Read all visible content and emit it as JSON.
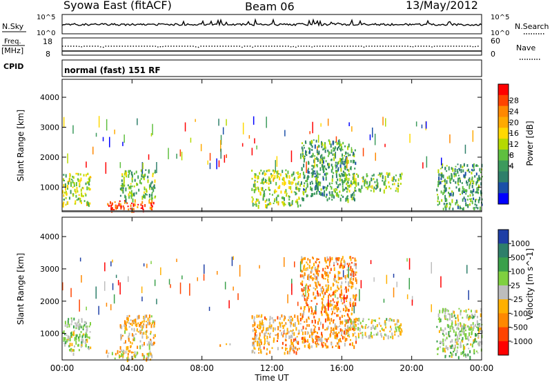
{
  "header": {
    "station": "Syowa East (fitACF)",
    "beam": "Beam 06",
    "date": "13/May/2012"
  },
  "noise_panel": {
    "left_label": "N.Sky",
    "right_label": "N.Search",
    "left_ticks": [
      "10^5",
      "10^0"
    ],
    "right_ticks": [
      "10^5",
      "10^0"
    ]
  },
  "freq_panel": {
    "left_label": "Freq.",
    "left_unit": "[MHz]",
    "right_label": "Nave",
    "left_ticks": [
      "18",
      "8"
    ],
    "right_ticks": [
      "60",
      "0"
    ]
  },
  "cpid_panel": {
    "label": "CPID",
    "mode": "normal (fast) 151 RF"
  },
  "axes": {
    "xlabel": "Time UT",
    "ylabel": "Slant Range [km]",
    "x_ticks": [
      "00:00",
      "04:00",
      "08:00",
      "12:00",
      "16:00",
      "20:00",
      "00:00"
    ],
    "y_ticks": [
      "1000",
      "2000",
      "3000",
      "4000"
    ]
  },
  "power_colorbar": {
    "label": "Power [dB]",
    "ticks": [
      "28",
      "24",
      "20",
      "16",
      "12",
      "8",
      "4"
    ],
    "colors": [
      "#ff0000",
      "#ff4400",
      "#ff8800",
      "#ffaa00",
      "#ffd800",
      "#b5d900",
      "#5fbf3f",
      "#3c9a5c",
      "#2e7f6a",
      "#1a4fa8",
      "#0000ff"
    ]
  },
  "velocity_colorbar": {
    "label": "Velocity [m s^-1]",
    "ticks": [
      "1000",
      "500",
      "100",
      "25",
      "-25",
      "-100",
      "-500",
      "-1000"
    ],
    "colors": [
      "#1f3fa6",
      "#2e7f6a",
      "#3aa04a",
      "#7fd040",
      "#bdbdbd",
      "#ffb000",
      "#ff8800",
      "#ff4400",
      "#ff0000"
    ]
  },
  "chart_data": {
    "type": "heatmap",
    "title": "Syowa East (fitACF) Beam 06 13/May/2012",
    "xlabel": "Time UT",
    "ylabel": "Slant Range [km]",
    "xlim_hours": [
      0,
      24
    ],
    "ylim_km": [
      180,
      4600
    ],
    "panels": [
      {
        "name": "Power",
        "unit": "dB",
        "range": [
          0,
          30
        ],
        "regions": [
          {
            "t": [
              0.0,
              1.6
            ],
            "r": [
              400,
              1500
            ],
            "level": 14
          },
          {
            "t": [
              2.5,
              5.2
            ],
            "r": [
              250,
              600
            ],
            "level": 26
          },
          {
            "t": [
              3.3,
              5.3
            ],
            "r": [
              600,
              1600
            ],
            "level": 12
          },
          {
            "t": [
              10.8,
              13.6
            ],
            "r": [
              400,
              1600
            ],
            "level": 14
          },
          {
            "t": [
              13.6,
              16.8
            ],
            "r": [
              600,
              2600
            ],
            "level": 10
          },
          {
            "t": [
              16.2,
              19.4
            ],
            "r": [
              900,
              1500
            ],
            "level": 12
          },
          {
            "t": [
              21.4,
              24.0
            ],
            "r": [
              300,
              1800
            ],
            "level": 10
          }
        ]
      },
      {
        "name": "Velocity",
        "unit": "m s^-1",
        "range": [
          -1000,
          1000
        ],
        "regions": [
          {
            "t": [
              0.0,
              1.6
            ],
            "r": [
              400,
              1500
            ],
            "level": 150
          },
          {
            "t": [
              2.5,
              5.2
            ],
            "r": [
              200,
              500
            ],
            "level": -150
          },
          {
            "t": [
              3.3,
              5.3
            ],
            "r": [
              600,
              1600
            ],
            "level": -200
          },
          {
            "t": [
              9.0,
              9.6
            ],
            "r": [
              600,
              700
            ],
            "level": -300
          },
          {
            "t": [
              10.8,
              13.6
            ],
            "r": [
              400,
              1600
            ],
            "level": -250
          },
          {
            "t": [
              13.6,
              16.8
            ],
            "r": [
              600,
              3400
            ],
            "level": -350
          },
          {
            "t": [
              16.2,
              19.4
            ],
            "r": [
              900,
              1500
            ],
            "level": 0
          },
          {
            "t": [
              21.4,
              24.0
            ],
            "r": [
              300,
              1800
            ],
            "level": 150
          }
        ]
      }
    ]
  }
}
